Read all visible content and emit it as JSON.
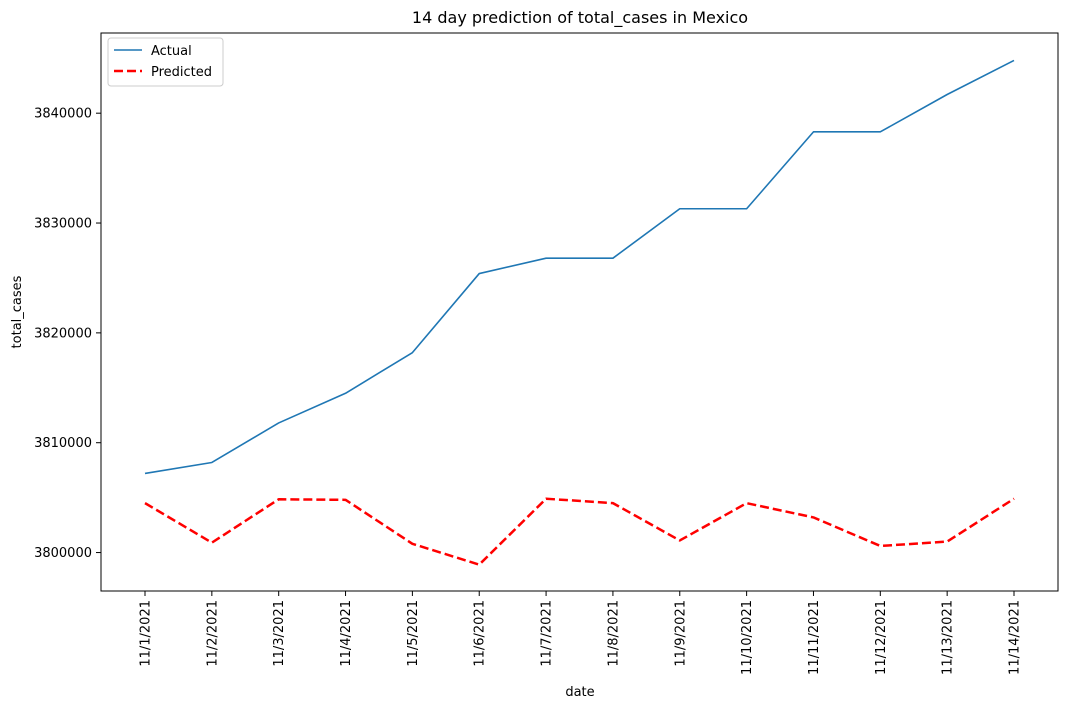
{
  "chart_data": {
    "type": "line",
    "title": "14 day prediction of total_cases in Mexico",
    "xlabel": "date",
    "ylabel": "total_cases",
    "x": [
      "11/1/2021",
      "11/2/2021",
      "11/3/2021",
      "11/4/2021",
      "11/5/2021",
      "11/6/2021",
      "11/7/2021",
      "11/8/2021",
      "11/9/2021",
      "11/10/2021",
      "11/11/2021",
      "11/12/2021",
      "11/13/2021",
      "11/14/2021"
    ],
    "yticks": [
      3800000,
      3810000,
      3820000,
      3830000,
      3840000
    ],
    "ylim": [
      3796500,
      3847300
    ],
    "grid": false,
    "legend_position": "top-left",
    "series": [
      {
        "name": "Actual",
        "color": "#1f77b4",
        "style": "solid",
        "values": [
          3807200,
          3808200,
          3811800,
          3814500,
          3818200,
          3825400,
          3826800,
          3826800,
          3831300,
          3831300,
          3838300,
          3838300,
          3841700,
          3844800
        ]
      },
      {
        "name": "Predicted",
        "color": "#ff0000",
        "style": "dashed",
        "values": [
          3804500,
          3800900,
          3804850,
          3804800,
          3800800,
          3798900,
          3804900,
          3804500,
          3801100,
          3804500,
          3803200,
          3800600,
          3801000,
          3804900
        ]
      }
    ]
  }
}
